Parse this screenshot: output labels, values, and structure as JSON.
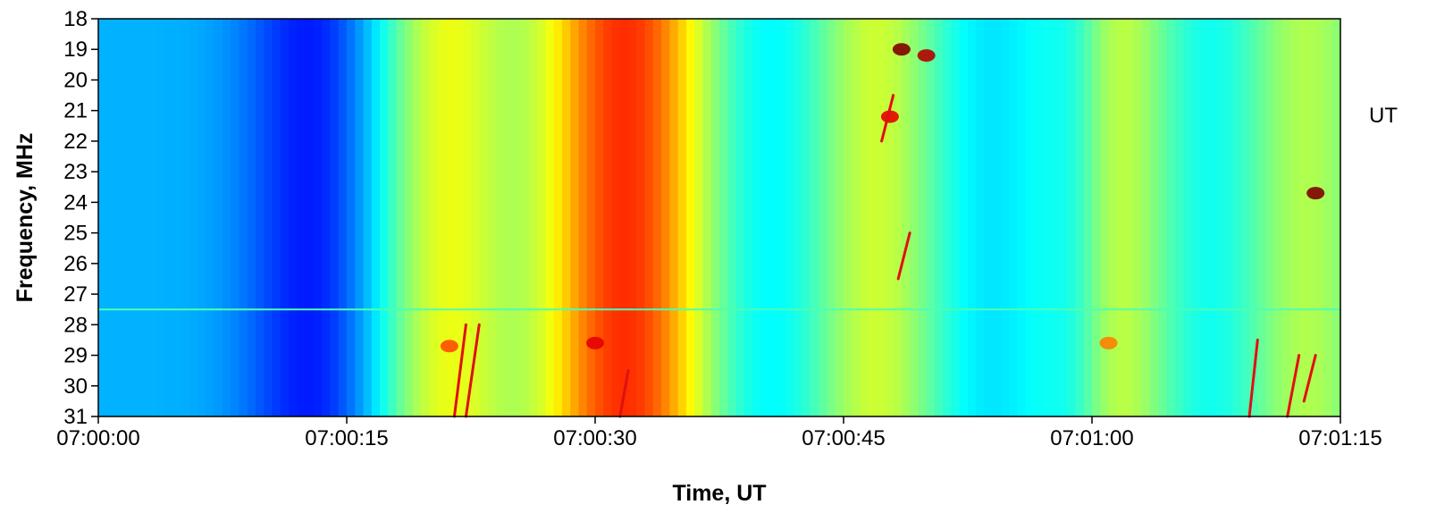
{
  "chart_data": {
    "type": "heatmap",
    "title": "",
    "xlabel": "Time, UT",
    "ylabel": "Frequency, MHz",
    "x_ticks": [
      "07:00:00",
      "07:00:15",
      "07:00:30",
      "07:00:45",
      "07:01:00",
      "07:01:15"
    ],
    "x_range_seconds": [
      0,
      75
    ],
    "y_ticks": [
      18,
      19,
      20,
      21,
      22,
      23,
      24,
      25,
      26,
      27,
      28,
      29,
      30,
      31
    ],
    "y_range": [
      18,
      31
    ],
    "y_inverted": true,
    "colormap": "jet",
    "side_text": "UT",
    "bright_columns": [
      {
        "t": 21,
        "intensity": 0.55
      },
      {
        "t": 30,
        "intensity": 0.62
      },
      {
        "t": 34,
        "intensity": 0.55
      },
      {
        "t": 47,
        "intensity": 0.5
      },
      {
        "t": 61,
        "intensity": 0.52
      },
      {
        "t": 73,
        "intensity": 0.45
      }
    ],
    "hotspots": [
      {
        "t": 21.2,
        "f": 28.7,
        "intensity": 0.8
      },
      {
        "t": 30.0,
        "f": 28.6,
        "intensity": 0.9
      },
      {
        "t": 61.0,
        "f": 28.6,
        "intensity": 0.75
      },
      {
        "t": 73.5,
        "f": 23.7,
        "intensity": 1.0
      },
      {
        "t": 48.5,
        "f": 19.0,
        "intensity": 1.0
      },
      {
        "t": 47.8,
        "f": 21.2,
        "intensity": 0.9
      },
      {
        "t": 50.0,
        "f": 19.2,
        "intensity": 0.95
      }
    ],
    "burst_lines": [
      {
        "t0": 22.2,
        "f0": 28.0,
        "t1": 21.5,
        "f1": 31.0
      },
      {
        "t0": 23.0,
        "f0": 28.0,
        "t1": 22.2,
        "f1": 31.0
      },
      {
        "t0": 70.0,
        "f0": 28.5,
        "t1": 69.5,
        "f1": 31.0
      },
      {
        "t0": 72.5,
        "f0": 29.0,
        "t1": 71.8,
        "f1": 31.0
      },
      {
        "t0": 73.5,
        "f0": 29.0,
        "t1": 72.8,
        "f1": 30.5
      },
      {
        "t0": 48.0,
        "f0": 20.5,
        "t1": 47.3,
        "f1": 22.0
      },
      {
        "t0": 49.0,
        "f0": 25.0,
        "t1": 48.3,
        "f1": 26.5
      },
      {
        "t0": 32.0,
        "f0": 29.5,
        "t1": 31.5,
        "f1": 31.0
      }
    ]
  }
}
